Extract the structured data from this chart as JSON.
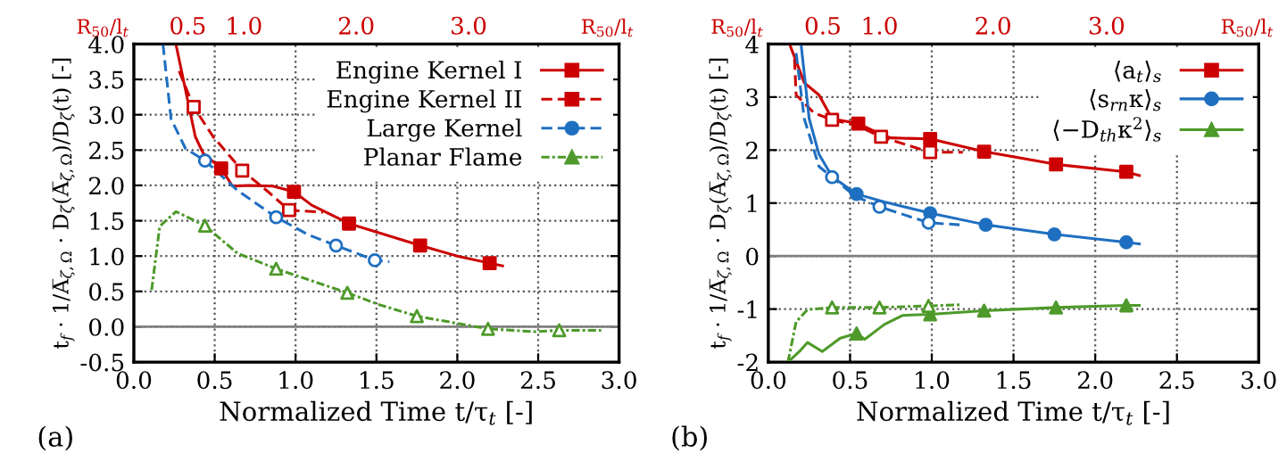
{
  "chart_data": [
    {
      "type": "line",
      "xlabel": "Normalized Time t/τ$_{t}$ [-]",
      "ylabel": "t$_{f}$ · 1/A̅$_{ζ,Ω}$ · D$_{ζ}$(A̅$_{ζ,Ω}$)/D$_{ζ}$(t) [-]",
      "x2label": "R$_{50}$/l$_{t}$",
      "annotations": [
        "(a)"
      ],
      "xlim": [
        0,
        3
      ],
      "ylim": [
        -0.5,
        4.0
      ],
      "xticks": [
        {
          "value": 0,
          "label": "0.0"
        },
        {
          "value": 0.5,
          "label": "0.5"
        },
        {
          "value": 1,
          "label": "1.0"
        },
        {
          "value": 1.5,
          "label": "1.5"
        },
        {
          "value": 2,
          "label": "2.0"
        },
        {
          "value": 2.5,
          "label": "2.5"
        },
        {
          "value": 3,
          "label": "3.0"
        }
      ],
      "yticks": [
        {
          "value": -0.5,
          "label": "-0.5"
        },
        {
          "value": 0,
          "label": "0.0"
        },
        {
          "value": 0.5,
          "label": "0.5"
        },
        {
          "value": 1,
          "label": "1.0"
        },
        {
          "value": 1.5,
          "label": "1.5"
        },
        {
          "value": 2,
          "label": "2.0"
        },
        {
          "value": 2.5,
          "label": "2.5"
        },
        {
          "value": 3,
          "label": "3.0"
        },
        {
          "value": 3.5,
          "label": "3.5"
        },
        {
          "value": 4,
          "label": "4.0"
        }
      ],
      "x2lim": [
        0.02,
        4.34
      ],
      "x2ticks": [
        0.5,
        {
          "value": 1,
          "label": "1.0"
        },
        {
          "value": 2,
          "label": "2.0"
        },
        {
          "value": 3,
          "label": "3.0"
        }
      ],
      "grid": true,
      "legend": "top right",
      "ref_lines": [
        {
          "axis": "y",
          "value": 0,
          "color": "#808080"
        }
      ],
      "series": [
        {
          "type": "line",
          "name": "Engine Kernel I",
          "color": "#cc0000",
          "line_style": "solid",
          "x": [
            0.26,
            0.38,
            0.43,
            0.54,
            0.61,
            0.71,
            0.86,
            0.99,
            1.1,
            1.33,
            1.77,
            2.0,
            2.2,
            2.28
          ],
          "values": [
            4.0,
            2.69,
            2.45,
            2.24,
            1.99,
            2.0,
            1.99,
            1.91,
            1.72,
            1.46,
            1.15,
            1.0,
            0.9,
            0.86
          ]
        },
        {
          "type": "scatter",
          "color": "#cc0000",
          "marker": "square",
          "x": [
            0.54,
            0.99,
            1.33,
            1.77,
            2.2
          ],
          "values": [
            2.24,
            1.91,
            1.46,
            1.15,
            0.9
          ]
        },
        {
          "type": "line",
          "name": "Engine Kernel II",
          "color": "#cc0000",
          "line_style": "dashed",
          "x": [
            0.28,
            0.37,
            0.49,
            0.67,
            0.82,
            0.96,
            1.17
          ],
          "values": [
            3.62,
            3.11,
            2.69,
            2.21,
            1.93,
            1.65,
            1.62
          ]
        },
        {
          "type": "scatter",
          "color": "#cc0000",
          "marker": "square",
          "x": [
            0.37,
            0.67,
            0.96
          ],
          "values": [
            3.11,
            2.21,
            1.65
          ]
        },
        {
          "type": "line",
          "name": "Large Kernel",
          "color": "#1f6fc0",
          "line_style": "dashed",
          "x": [
            0.18,
            0.23,
            0.32,
            0.44,
            0.64,
            0.88,
            1.08,
            1.25,
            1.49,
            1.58
          ],
          "values": [
            4.0,
            2.94,
            2.52,
            2.35,
            1.93,
            1.55,
            1.3,
            1.15,
            0.94,
            0.92
          ]
        },
        {
          "type": "scatter",
          "color": "#1f6fc0",
          "marker": "circle",
          "x": [
            0.44,
            0.88,
            1.25,
            1.49
          ],
          "values": [
            2.35,
            1.55,
            1.15,
            0.94
          ]
        },
        {
          "type": "line",
          "name": "Planar Flame",
          "color": "#4e9a2a",
          "line_style": "dashdot",
          "x": [
            0.11,
            0.16,
            0.26,
            0.44,
            0.64,
            0.88,
            1.32,
            1.52,
            1.75,
            2.19,
            2.48,
            2.63,
            2.89
          ],
          "values": [
            0.52,
            1.42,
            1.63,
            1.43,
            1.04,
            0.82,
            0.48,
            0.31,
            0.15,
            -0.03,
            -0.07,
            -0.05,
            -0.05
          ]
        },
        {
          "type": "scatter",
          "color": "#4e9a2a",
          "marker": "triangle",
          "x": [
            0.44,
            0.88,
            1.32,
            1.75,
            2.19,
            2.63
          ],
          "values": [
            1.43,
            0.82,
            0.48,
            0.15,
            -0.03,
            -0.05
          ]
        }
      ]
    },
    {
      "type": "line",
      "xlabel": "Normalized Time t/τ$_{t}$ [-]",
      "ylabel": "t$_{f}$ · 1/A̅$_{ζ,Ω}$ · D$_{ζ}$(A̅$_{ζ,Ω}$)/D$_{ζ}$(t) [-]",
      "x2label": "R$_{50}$/l$_{t}$",
      "annotations": [
        "(b)"
      ],
      "xlim": [
        0,
        3
      ],
      "ylim": [
        -2,
        4
      ],
      "xticks": [
        {
          "value": 0,
          "label": "0.0"
        },
        {
          "value": 0.5,
          "label": "0.5"
        },
        {
          "value": 1,
          "label": "1.0"
        },
        {
          "value": 1.5,
          "label": "1.5"
        },
        {
          "value": 2,
          "label": "2.0"
        },
        {
          "value": 2.5,
          "label": "2.5"
        },
        {
          "value": 3,
          "label": "3.0"
        }
      ],
      "yticks": [
        -2,
        -1,
        0,
        1,
        2,
        3,
        4
      ],
      "x2lim": [
        0.02,
        4.34
      ],
      "x2ticks": [
        0.5,
        {
          "value": 1,
          "label": "1.0"
        },
        {
          "value": 2,
          "label": "2.0"
        },
        {
          "value": 3,
          "label": "3.0"
        }
      ],
      "grid": true,
      "legend": "top right",
      "ref_lines": [
        {
          "axis": "y",
          "value": 0,
          "color": "#808080"
        }
      ],
      "series": [
        {
          "type": "line",
          "name": "⟨a$_{t}$⟩$_{s}$",
          "color": "#cc0000",
          "line_style": "solid",
          "x": [
            0.13,
            0.22,
            0.31,
            0.39,
            0.55,
            0.68,
            0.75,
            0.99,
            1.32,
            1.76,
            2.19,
            2.27
          ],
          "values": [
            4.0,
            3.27,
            3.04,
            2.59,
            2.5,
            2.31,
            2.23,
            2.21,
            1.97,
            1.73,
            1.59,
            1.52
          ]
        },
        {
          "type": "scatter",
          "color": "#cc0000",
          "marker": "square",
          "x": [
            0.55,
            0.99,
            1.32,
            1.76,
            2.19
          ],
          "values": [
            2.5,
            2.21,
            1.97,
            1.73,
            1.59
          ]
        },
        {
          "type": "line",
          "color": "#cc0000",
          "line_style": "dashed",
          "x": [
            0.16,
            0.17,
            0.28,
            0.39,
            0.53,
            0.69,
            0.99,
            1.19
          ],
          "values": [
            3.72,
            3.04,
            2.7,
            2.57,
            2.48,
            2.25,
            1.96,
            1.96
          ]
        },
        {
          "type": "scatter",
          "color": "#cc0000",
          "marker": "square",
          "x": [
            0.39,
            0.69,
            0.99
          ],
          "values": [
            2.57,
            2.25,
            1.96
          ]
        },
        {
          "type": "line",
          "name": "⟨s$_{rn}$κ⟩$_{s}$",
          "color": "#1f6fc0",
          "line_style": "solid",
          "x": [
            0.2,
            0.25,
            0.31,
            0.39,
            0.54,
            0.71,
            0.99,
            1.33,
            1.75,
            2.19,
            2.27
          ],
          "values": [
            4.0,
            2.59,
            1.92,
            1.5,
            1.17,
            1.02,
            0.81,
            0.59,
            0.41,
            0.26,
            0.23
          ]
        },
        {
          "type": "scatter",
          "color": "#1f6fc0",
          "marker": "circle",
          "x": [
            0.54,
            0.99,
            1.33,
            1.75,
            2.19
          ],
          "values": [
            1.17,
            0.81,
            0.59,
            0.41,
            0.26
          ]
        },
        {
          "type": "line",
          "color": "#1f6fc0",
          "line_style": "dashed",
          "x": [
            0.17,
            0.22,
            0.31,
            0.39,
            0.53,
            0.68,
            0.98,
            1.17
          ],
          "values": [
            3.83,
            2.59,
            1.69,
            1.49,
            1.13,
            0.93,
            0.63,
            0.59
          ]
        },
        {
          "type": "scatter",
          "color": "#1f6fc0",
          "marker": "circle",
          "x": [
            0.39,
            0.68,
            0.98
          ],
          "values": [
            1.49,
            0.93,
            0.63
          ]
        },
        {
          "type": "line",
          "name": "⟨−D$_{th}$κ$^{2}$⟩$_{s}$",
          "color": "#4e9a2a",
          "line_style": "solid",
          "x": [
            0.12,
            0.19,
            0.24,
            0.33,
            0.44,
            0.54,
            0.59,
            0.71,
            0.82,
            0.99,
            1.32,
            1.76,
            2.19,
            2.27
          ],
          "values": [
            -2.0,
            -1.8,
            -1.63,
            -1.8,
            -1.55,
            -1.46,
            -1.57,
            -1.29,
            -1.12,
            -1.1,
            -1.03,
            -0.97,
            -0.93,
            -0.93
          ]
        },
        {
          "type": "scatter",
          "color": "#4e9a2a",
          "marker": "triangle",
          "x": [
            0.54,
            0.99,
            1.32,
            1.76,
            2.19
          ],
          "values": [
            -1.46,
            -1.1,
            -1.03,
            -0.97,
            -0.93
          ]
        },
        {
          "type": "line",
          "color": "#4e9a2a",
          "line_style": "dashdot",
          "x": [
            0.12,
            0.17,
            0.24,
            0.39,
            0.68,
            0.98,
            1.17
          ],
          "values": [
            -2.0,
            -1.24,
            -1.01,
            -0.97,
            -0.97,
            -0.94,
            -0.92
          ]
        },
        {
          "type": "scatter",
          "color": "#4e9a2a",
          "marker": "triangle",
          "x": [
            0.39,
            0.68,
            0.98
          ],
          "values": [
            -0.97,
            -0.97,
            -0.94
          ]
        }
      ]
    }
  ]
}
